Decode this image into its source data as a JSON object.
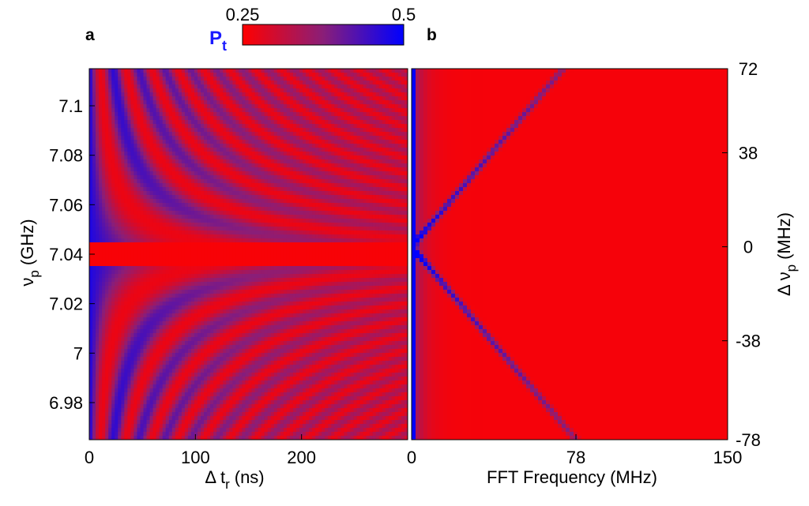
{
  "chart_data": [
    {
      "panel_label": "a",
      "type": "heatmap",
      "description_of_pattern": "Rabi-like interference fringes: oscillation frequency grows with detuning from the center frequency.",
      "x": {
        "label_main": "Δ t",
        "label_sub": "r",
        "label_unit": "(ns)",
        "lim": [
          0,
          300
        ],
        "ticks": [
          0,
          100,
          200
        ],
        "tick_labels": [
          "0",
          "100",
          "200"
        ]
      },
      "y": {
        "label_main": "ν",
        "label_sub": "p",
        "label_unit": "(GHz)",
        "lim": [
          6.965,
          7.115
        ],
        "ticks": [
          6.98,
          7.0,
          7.02,
          7.04,
          7.06,
          7.08,
          7.1
        ],
        "tick_labels": [
          "6.98",
          "7",
          "7.02",
          "7.04",
          "7.06",
          "7.08",
          "7.1"
        ]
      },
      "center_frequency": 7.04,
      "z_range": [
        0.25,
        0.5
      ]
    },
    {
      "panel_label": "b",
      "type": "heatmap",
      "x": {
        "label": "FFT Frequency (MHz)",
        "lim": [
          0,
          150
        ],
        "ticks": [
          0,
          78,
          150
        ],
        "tick_labels": [
          "0",
          "78",
          "150"
        ]
      },
      "y": {
        "label_main": "Δ ν",
        "label_sub": "p",
        "label_unit": "(MHz)",
        "lim": [
          -78,
          72
        ],
        "ticks": [
          -78,
          -38,
          0,
          38,
          72
        ],
        "tick_labels": [
          "-78",
          "-38",
          "0",
          "38",
          "72"
        ],
        "side": "right"
      },
      "features": [
        {
          "name": "V-shaped peak",
          "relation": "FFT frequency = |Δν_p|"
        }
      ],
      "z_range": [
        0.25,
        0.5
      ]
    }
  ],
  "colorbar": {
    "title_main": "P",
    "title_sub": "t",
    "min_label": "0.25",
    "max_label": "0.5",
    "colors": {
      "low": "#ff0000",
      "mid": "#8a1e78",
      "high": "#0000ff"
    }
  }
}
